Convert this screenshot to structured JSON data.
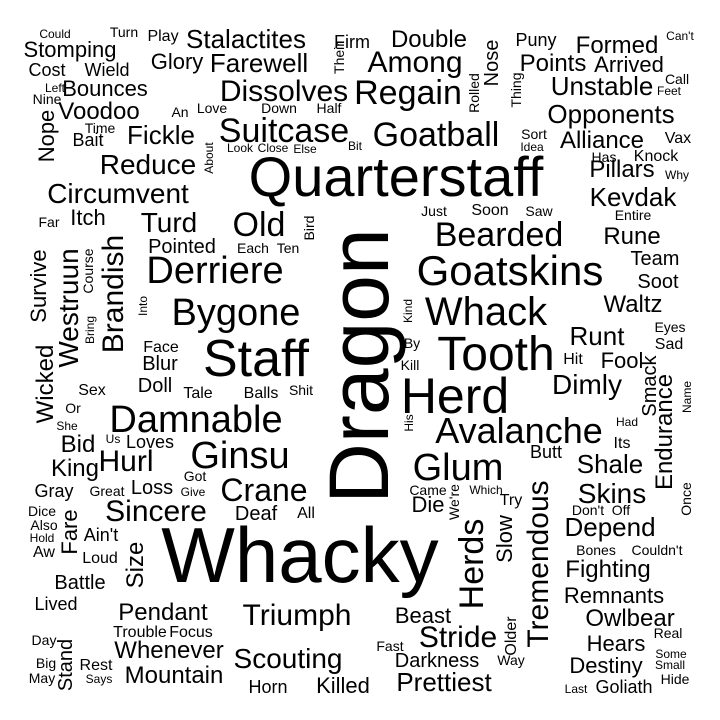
{
  "words": [
    "Dragon",
    "Whacky",
    "Quarterstaff",
    "Staff",
    "Herd",
    "Tooth",
    "Goatskins",
    "Whack",
    "Damnable",
    "Derriere",
    "Bygone",
    "Ginsu",
    "Glum",
    "Avalanche",
    "Goatball",
    "Suitcase",
    "Bearded",
    "Regain",
    "Among",
    "Dissolves",
    "Crane",
    "Sincere",
    "Triumph",
    "Scouting",
    "Herds",
    "Tremendous",
    "Circumvent",
    "Old",
    "Brandish",
    "Westruun",
    "Reduce",
    "Fickle",
    "Farewell",
    "Stalactites",
    "Double",
    "Formed",
    "Points",
    "Unstable",
    "Opponents",
    "Alliance",
    "Pillars",
    "Kevdak",
    "Rune",
    "Team",
    "Soot",
    "Waltz",
    "Runt",
    "Fool",
    "Dimly",
    "Endurance",
    "Shale",
    "Skins",
    "Depend",
    "Fighting",
    "Remnants",
    "Owlbear",
    "Hears",
    "Destiny",
    "Goliath",
    "Hide",
    "Prettiest",
    "Stride",
    "Beast",
    "Darkness",
    "Killed",
    "Horn",
    "Mountain",
    "Whenever",
    "Pendant",
    "Size",
    "Battle",
    "Fare",
    "Hurl",
    "King",
    "Bid",
    "Wicked",
    "Survive",
    "Voodoo",
    "Bounces",
    "Stomping",
    "Cost",
    "Wield",
    "Glory",
    "Turd",
    "Pointed",
    "Itch",
    "Nope",
    "Bait",
    "Slow",
    "Butt",
    "Die",
    "Deaf",
    "Loss",
    "Doll",
    "Blur",
    "Face",
    "Tale",
    "Balls",
    "Loves",
    "Gray",
    "Dice",
    "Also",
    "Hold",
    "Aw",
    "Lived",
    "Day",
    "Big",
    "May",
    "Rest",
    "Says",
    "Loud",
    "Ain't",
    "Stand",
    "Trouble",
    "Focus",
    "Fast",
    "Way",
    "Older",
    "Some",
    "Small",
    "Last",
    "Real",
    "Bones",
    "Couldn't",
    "Don't",
    "Off",
    "Once",
    "Try",
    "Which",
    "Came",
    "We're",
    "Great",
    "Give",
    "Got",
    "All",
    "Us",
    "She",
    "Or",
    "Sex",
    "Had",
    "Its",
    "Smack",
    "Name",
    "Hit",
    "Sad",
    "Eyes",
    "Kind",
    "By",
    "Kill",
    "His",
    "Just",
    "Soon",
    "Saw",
    "Entire",
    "Bird",
    "Each",
    "Ten",
    "Into",
    "Bring",
    "Course",
    "Far",
    "About",
    "Look",
    "Close",
    "Else",
    "Love",
    "Down",
    "Half",
    "Idea",
    "Sort",
    "Has",
    "Knock",
    "Vax",
    "Why",
    "Feet",
    "Call",
    "Can't",
    "Arrived",
    "Thing",
    "Puny",
    "Nose",
    "Rolled",
    "Their",
    "Firm",
    "Bit",
    "Play",
    "Turn",
    "Could",
    "Left",
    "Nine",
    "Time",
    "An",
    "Shit",
    "Gin"
  ]
}
